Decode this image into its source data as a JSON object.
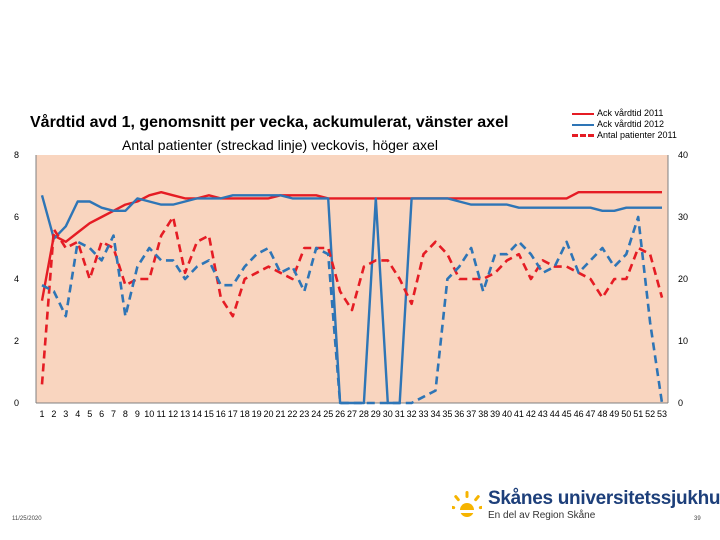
{
  "chart_data": {
    "type": "line",
    "title": "Vårdtid avd 1, genomsnitt per vecka, ackumulerat, vänster axel",
    "subtitle": "Antal patienter (streckad linje) veckovis, höger axel",
    "x": [
      1,
      2,
      3,
      4,
      5,
      6,
      7,
      8,
      9,
      10,
      11,
      12,
      13,
      14,
      15,
      16,
      17,
      18,
      19,
      20,
      21,
      22,
      23,
      24,
      25,
      26,
      27,
      28,
      29,
      30,
      31,
      32,
      33,
      34,
      35,
      36,
      37,
      38,
      39,
      40,
      41,
      42,
      43,
      44,
      45,
      46,
      47,
      48,
      49,
      50,
      51,
      52,
      53
    ],
    "x_tick_labels": [
      "1",
      "2",
      "3",
      "4",
      "5",
      "6",
      "7",
      "8",
      "9",
      "10",
      "11",
      "12",
      "13",
      "14",
      "15",
      "16",
      "17",
      "18",
      "19",
      "20",
      "21",
      "22",
      "23",
      "24",
      "25",
      "26",
      "27",
      "28",
      "29",
      "30",
      "31",
      "32",
      "33",
      "34",
      "35",
      "36",
      "37",
      "38",
      "39",
      "40",
      "41",
      "42",
      "43",
      "44",
      "45",
      "46",
      "47",
      "48",
      "49",
      "50",
      "51",
      "52",
      "53"
    ],
    "left_axis": {
      "ylim": [
        0,
        8
      ],
      "ticks": [
        "0",
        "2",
        "4",
        "6",
        "8"
      ]
    },
    "right_axis": {
      "ylim": [
        0,
        40
      ],
      "ticks": [
        "0",
        "10",
        "20",
        "30",
        "40"
      ]
    },
    "grid": false,
    "legend_position": "top-right",
    "plot_background": "#f9d5bf",
    "series": [
      {
        "name": "Ack vårdtid 2011",
        "axis": "left",
        "color": "#e51c24",
        "dash": "solid",
        "values": [
          3.3,
          5.4,
          5.2,
          5.5,
          5.8,
          6.0,
          6.2,
          6.4,
          6.5,
          6.7,
          6.8,
          6.7,
          6.6,
          6.6,
          6.7,
          6.6,
          6.6,
          6.6,
          6.6,
          6.6,
          6.7,
          6.7,
          6.7,
          6.7,
          6.6,
          6.6,
          6.6,
          6.6,
          6.6,
          6.6,
          6.6,
          6.6,
          6.6,
          6.6,
          6.6,
          6.6,
          6.6,
          6.6,
          6.6,
          6.6,
          6.6,
          6.6,
          6.6,
          6.6,
          6.6,
          6.8,
          6.8,
          6.8,
          6.8,
          6.8,
          6.8,
          6.8,
          6.8
        ]
      },
      {
        "name": "Ack vårdtid 2012",
        "axis": "left",
        "color": "#2e75b6",
        "dash": "solid",
        "values": [
          6.7,
          5.3,
          5.7,
          6.5,
          6.5,
          6.3,
          6.2,
          6.2,
          6.6,
          6.5,
          6.4,
          6.4,
          6.5,
          6.6,
          6.6,
          6.6,
          6.7,
          6.7,
          6.7,
          6.7,
          6.7,
          6.6,
          6.6,
          6.6,
          6.6,
          0,
          0,
          0,
          6.6,
          0,
          0,
          6.6,
          6.6,
          6.6,
          6.6,
          6.5,
          6.4,
          6.4,
          6.4,
          6.4,
          6.3,
          6.3,
          6.3,
          6.3,
          6.3,
          6.3,
          6.3,
          6.2,
          6.2,
          6.3,
          6.3,
          6.3,
          6.3
        ]
      },
      {
        "name": "Antal patienter 2011",
        "axis": "right",
        "color": "#e51c24",
        "dash": "dashed",
        "values": [
          3,
          28,
          25,
          26,
          20,
          26,
          25,
          19,
          20,
          20,
          27,
          30,
          21,
          26,
          27,
          17,
          14,
          20,
          21,
          22,
          21,
          20,
          25,
          25,
          25,
          18,
          15,
          22,
          23,
          23,
          20,
          16,
          24,
          26,
          24,
          20,
          20,
          20,
          21,
          23,
          24,
          20,
          23,
          22,
          22,
          21,
          20,
          17,
          20,
          20,
          25,
          24,
          17
        ]
      },
      {
        "name": "Antal patienter 2012",
        "axis": "right",
        "color": "#2e75b6",
        "dash": "dashed",
        "values": [
          19,
          18,
          14,
          26,
          25,
          23,
          27,
          14,
          22,
          25,
          23,
          23,
          20,
          22,
          23,
          19,
          19,
          22,
          24,
          25,
          21,
          22,
          18,
          25,
          24,
          0,
          0,
          0,
          0,
          0,
          0,
          0,
          1,
          2,
          20,
          22,
          25,
          18,
          24,
          24,
          26,
          24,
          21,
          22,
          26,
          21,
          23,
          25,
          22,
          24,
          30,
          13,
          0
        ]
      }
    ]
  },
  "footer": {
    "date": "11/25/2020",
    "page": "39"
  },
  "logo": {
    "name": "Skånes universitetssjukhus",
    "sub": "En del av Region Skåne"
  },
  "colors": {
    "accent_red": "#e51c24",
    "accent_blue": "#2e75b6",
    "plot_bg": "#f9d5bf",
    "logo_blue": "#1d3f7a",
    "logo_yellow": "#f6b400"
  }
}
